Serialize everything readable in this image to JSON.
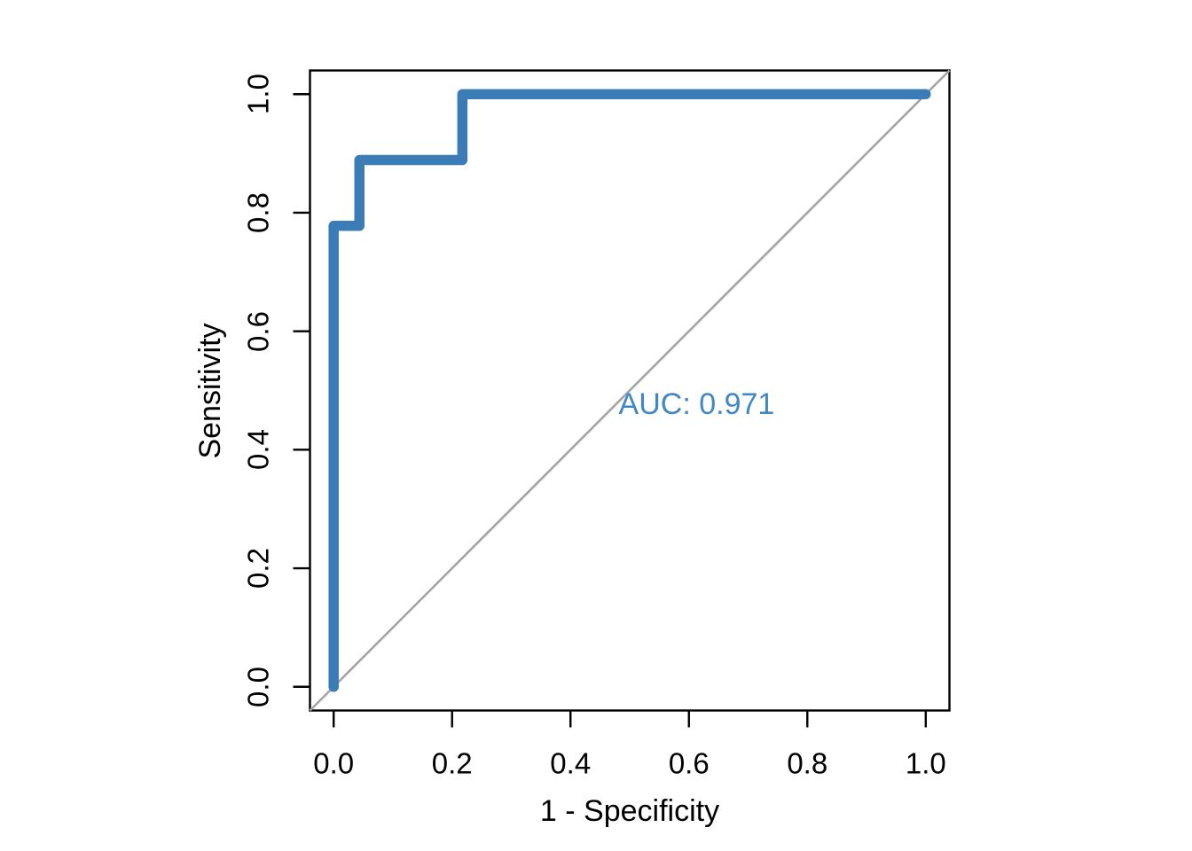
{
  "chart_data": {
    "type": "line",
    "chart_kind": "roc_step_curve",
    "title": "",
    "xlabel": "1 - Specificity",
    "ylabel": "Sensitivity",
    "xlim": [
      0,
      1
    ],
    "ylim": [
      0,
      1
    ],
    "axis_expansion": 0.04,
    "grid": false,
    "legend": false,
    "x_ticks": [
      0.0,
      0.2,
      0.4,
      0.6,
      0.8,
      1.0
    ],
    "y_ticks": [
      0.0,
      0.2,
      0.4,
      0.6,
      0.8,
      1.0
    ],
    "x_tick_labels": [
      "0.0",
      "0.2",
      "0.4",
      "0.6",
      "0.8",
      "1.0"
    ],
    "y_tick_labels": [
      "0.0",
      "0.2",
      "0.4",
      "0.6",
      "0.8",
      "1.0"
    ],
    "series": [
      {
        "name": "ROC curve",
        "color": "#3b7cb7",
        "line_width": 11.5,
        "points": [
          [
            0,
            0
          ],
          [
            0,
            0.7778
          ],
          [
            0.0435,
            0.7778
          ],
          [
            0.0435,
            0.8889
          ],
          [
            0.2174,
            0.8889
          ],
          [
            0.2174,
            1.0
          ],
          [
            1.0,
            1.0
          ]
        ]
      }
    ],
    "reference_line": {
      "name": "chance diagonal",
      "slope": 1,
      "intercept": 0,
      "color": "#a4a4a4",
      "line_width": 2.6
    },
    "annotation": {
      "text": "AUC: 0.971",
      "x": 0.613,
      "y": 0.477,
      "color": "#4187c7"
    },
    "auc": 0.971,
    "axis_color": "#000000"
  }
}
